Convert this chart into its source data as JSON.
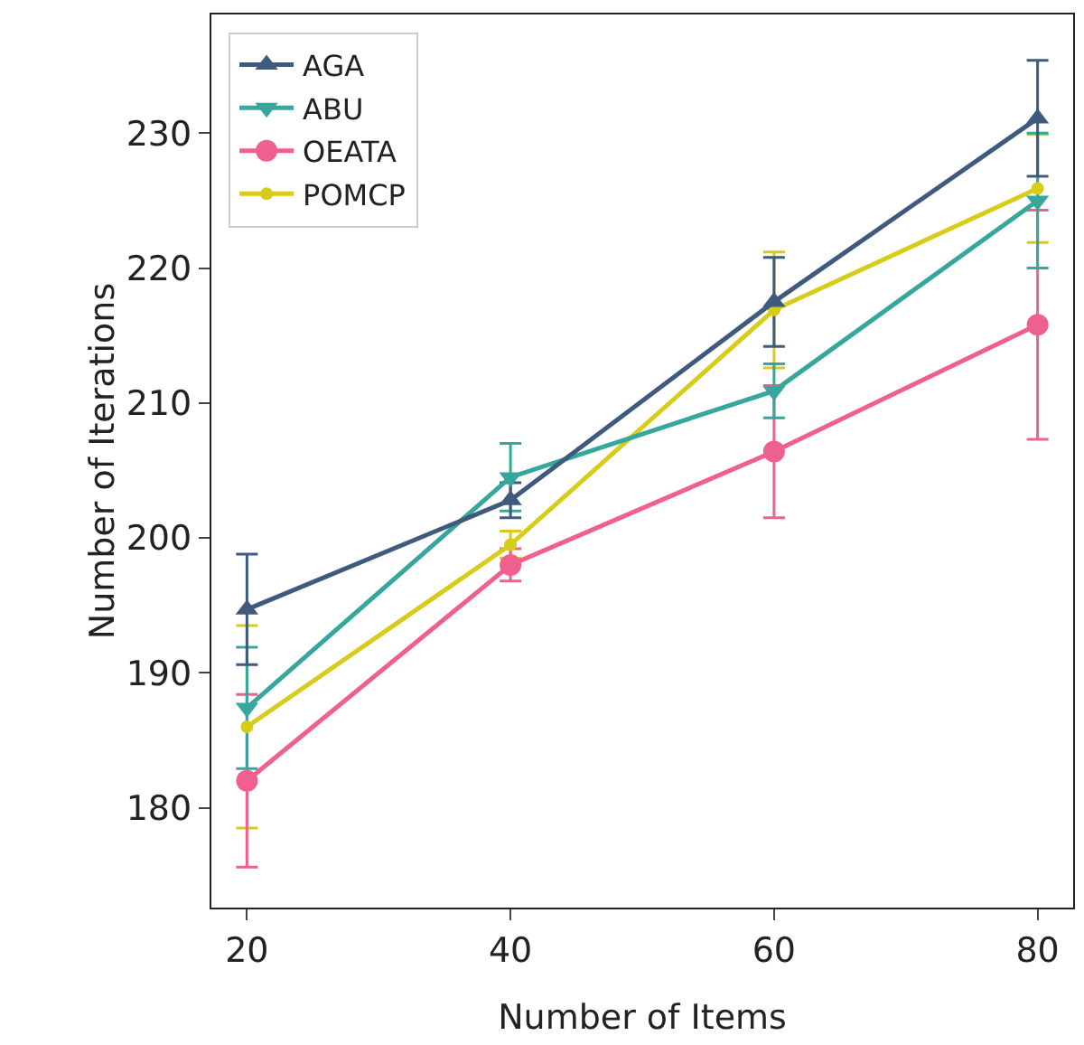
{
  "chart_data": {
    "type": "line",
    "xlabel": "Number of Items",
    "ylabel": "Number of Iterations",
    "x": [
      20,
      40,
      60,
      80
    ],
    "series": [
      {
        "name": "AGA",
        "color": "#3f5a7f",
        "marker": "triangle",
        "values": [
          194.7,
          202.8,
          217.5,
          231.1
        ],
        "errors": [
          4.1,
          1.3,
          3.3,
          4.3
        ]
      },
      {
        "name": "ABU",
        "color": "#35a79c",
        "marker": "triangle-down",
        "values": [
          187.4,
          204.5,
          210.9,
          225.0
        ],
        "errors": [
          4.5,
          2.5,
          2.0,
          5.0
        ]
      },
      {
        "name": "OEATA",
        "color": "#f0608f",
        "marker": "circle",
        "values": [
          182.0,
          198.0,
          206.4,
          215.8
        ],
        "errors": [
          6.4,
          1.2,
          4.9,
          8.5
        ]
      },
      {
        "name": "POMCP",
        "color": "#d7cc1a",
        "marker": "small-circle",
        "values": [
          186.0,
          199.5,
          216.9,
          225.9
        ],
        "errors": [
          7.5,
          1.0,
          4.3,
          4.0
        ]
      }
    ],
    "xlim": [
      17.3,
      82.7
    ],
    "xticks": [
      20,
      40,
      60,
      80
    ],
    "ylim": [
      172.6,
      238.8
    ],
    "yticks": [
      180,
      190,
      200,
      210,
      220,
      230
    ],
    "grid": false,
    "legend": "top left"
  }
}
